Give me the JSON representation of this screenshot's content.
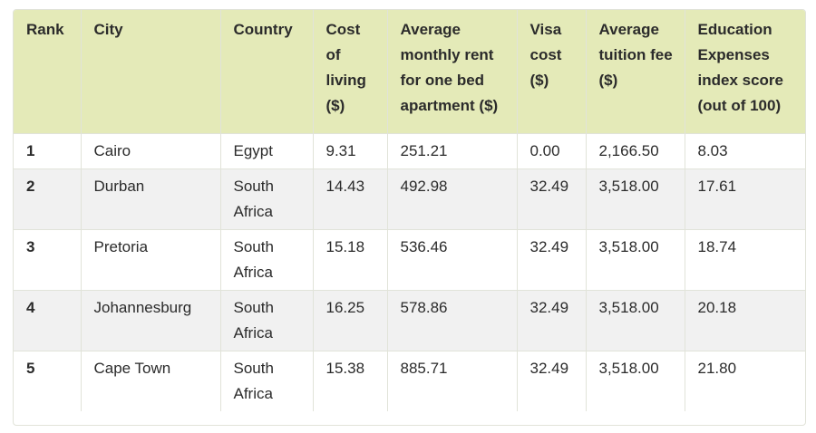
{
  "table": {
    "headers": [
      "Rank",
      "City",
      "Country",
      "Cost of living ($)",
      "Average monthly rent for one bed apartment ($)",
      "Visa cost ($)",
      "Average tuition fee ($)",
      "Education Expenses index score (out of 100)"
    ],
    "rows": [
      [
        "1",
        "Cairo",
        "Egypt",
        "9.31",
        "251.21",
        "0.00",
        "2,166.50",
        "8.03"
      ],
      [
        "2",
        "Durban",
        "South Africa",
        "14.43",
        "492.98",
        "32.49",
        "3,518.00",
        "17.61"
      ],
      [
        "3",
        "Pretoria",
        "South Africa",
        "15.18",
        "536.46",
        "32.49",
        "3,518.00",
        "18.74"
      ],
      [
        "4",
        "Johannesburg",
        "South Africa",
        "16.25",
        "578.86",
        "32.49",
        "3,518.00",
        "20.18"
      ],
      [
        "5",
        "Cape Town",
        "South Africa",
        "15.38",
        "885.71",
        "32.49",
        "3,518.00",
        "21.80"
      ]
    ]
  }
}
